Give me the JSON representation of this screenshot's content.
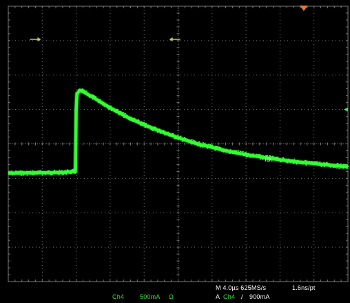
{
  "chart_data": {
    "type": "line",
    "title": "",
    "xlabel": "",
    "ylabel": "",
    "grid": true,
    "divisions": {
      "x": 10,
      "y": 8
    },
    "xlim": [
      -2.0,
      8.0
    ],
    "ylim": [
      -5.0,
      3.0
    ],
    "trace_label": "ID",
    "series": [
      {
        "name": "",
        "color": "#33ff33",
        "x": [
          -2.0,
          -0.4,
          -0.02,
          0.0,
          0.02,
          0.1,
          0.2,
          0.5,
          1.0,
          1.5,
          2.0,
          2.5,
          3.0,
          3.5,
          4.0,
          4.5,
          5.0,
          5.5,
          6.0,
          6.5,
          7.0,
          7.5,
          8.0
        ],
        "values": [
          -1.85,
          -1.83,
          -1.8,
          0.0,
          0.45,
          0.55,
          0.52,
          0.35,
          0.05,
          -0.22,
          -0.45,
          -0.64,
          -0.82,
          -0.98,
          -1.1,
          -1.22,
          -1.31,
          -1.39,
          -1.46,
          -1.52,
          -1.57,
          -1.62,
          -1.66
        ]
      }
    ],
    "markers": {
      "trigger_position": 6.7,
      "ref_arrows_left": -1.2,
      "ref_arrows_right": 2.9,
      "ref_arrows_level": 3.0,
      "trigger_level": 0.0
    }
  },
  "readouts": {
    "channel": "Ch4",
    "vert_scale": "500mA",
    "coupling": "Ω",
    "timebase": "M 4.0µs 625MS/s",
    "record": "1.6ns/pt",
    "trigger_prefix": "A",
    "trigger_source": "Ch4",
    "trigger_slope": "/",
    "trigger_level": "900mA"
  },
  "colors": {
    "background": "#000000",
    "trace": "#33ff33",
    "grid": "#7a7a7a",
    "trigger_marker": "#e07a2a",
    "arrow": "#c8d23a",
    "readout_green": "#33e03a"
  }
}
